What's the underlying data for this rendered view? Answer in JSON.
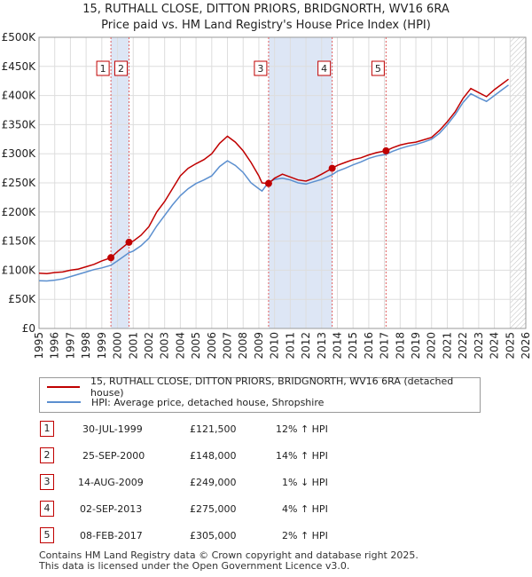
{
  "header": {
    "title_line1": "15, RUTHALL CLOSE, DITTON PRIORS, BRIDGNORTH, WV16 6RA",
    "title_line2": "Price paid vs. HM Land Registry's House Price Index (HPI)"
  },
  "colors": {
    "price_line": "#c00000",
    "hpi_line": "#5b8fcf",
    "shade": "#dde6f5",
    "marker_line": "#e06060"
  },
  "legend": {
    "price_label": "15, RUTHALL CLOSE, DITTON PRIORS, BRIDGNORTH, WV16 6RA (detached house)",
    "hpi_label": "HPI: Average price, detached house, Shropshire"
  },
  "transactions": [
    {
      "num": "1",
      "date": "30-JUL-1999",
      "price": "£121,500",
      "hpi": "12% ↑ HPI"
    },
    {
      "num": "2",
      "date": "25-SEP-2000",
      "price": "£148,000",
      "hpi": "14% ↑ HPI"
    },
    {
      "num": "3",
      "date": "14-AUG-2009",
      "price": "£249,000",
      "hpi": "1% ↓ HPI"
    },
    {
      "num": "4",
      "date": "02-SEP-2013",
      "price": "£275,000",
      "hpi": "4% ↑ HPI"
    },
    {
      "num": "5",
      "date": "08-FEB-2017",
      "price": "£305,000",
      "hpi": "2% ↑ HPI"
    }
  ],
  "footer": {
    "line1": "Contains HM Land Registry data © Crown copyright and database right 2025.",
    "line2": "This data is licensed under the Open Government Licence v3.0."
  },
  "chart_data": {
    "type": "line",
    "xlim": [
      1995,
      2026
    ],
    "ylim": [
      0,
      500000
    ],
    "x_ticks": [
      "1995",
      "1996",
      "1997",
      "1998",
      "1999",
      "2000",
      "2001",
      "2002",
      "2003",
      "2004",
      "2005",
      "2006",
      "2007",
      "2008",
      "2009",
      "2010",
      "2011",
      "2012",
      "2013",
      "2014",
      "2015",
      "2016",
      "2017",
      "2018",
      "2019",
      "2020",
      "2021",
      "2022",
      "2023",
      "2024",
      "2025",
      "2026"
    ],
    "y_ticks": [
      {
        "value": 0,
        "label": "£0"
      },
      {
        "value": 50000,
        "label": "£50K"
      },
      {
        "value": 100000,
        "label": "£100K"
      },
      {
        "value": 150000,
        "label": "£150K"
      },
      {
        "value": 200000,
        "label": "£200K"
      },
      {
        "value": 250000,
        "label": "£250K"
      },
      {
        "value": 300000,
        "label": "£300K"
      },
      {
        "value": 350000,
        "label": "£350K"
      },
      {
        "value": 400000,
        "label": "£400K"
      },
      {
        "value": 450000,
        "label": "£450K"
      },
      {
        "value": 500000,
        "label": "£500K"
      }
    ],
    "grid": true,
    "future_shade_from": 2025.0,
    "series": [
      {
        "name": "15, RUTHALL CLOSE, DITTON PRIORS, BRIDGNORTH, WV16 6RA (detached house)",
        "x": [
          1995.0,
          1995.5,
          1996.0,
          1996.5,
          1997.0,
          1997.5,
          1998.0,
          1998.5,
          1999.0,
          1999.58,
          2000.0,
          2000.73,
          2001.0,
          2001.5,
          2002.0,
          2002.5,
          2003.0,
          2003.5,
          2004.0,
          2004.5,
          2005.0,
          2005.5,
          2006.0,
          2006.5,
          2007.0,
          2007.5,
          2008.0,
          2008.5,
          2009.0,
          2009.2,
          2009.62,
          2010.0,
          2010.5,
          2011.0,
          2011.5,
          2012.0,
          2012.5,
          2013.0,
          2013.67,
          2014.0,
          2014.5,
          2015.0,
          2015.5,
          2016.0,
          2016.5,
          2017.1,
          2017.5,
          2018.0,
          2018.5,
          2019.0,
          2019.5,
          2020.0,
          2020.5,
          2021.0,
          2021.5,
          2022.0,
          2022.5,
          2023.0,
          2023.5,
          2024.0,
          2024.5,
          2024.9
        ],
        "y": [
          95000,
          94000,
          96000,
          97000,
          100000,
          102000,
          106000,
          110000,
          116000,
          121500,
          132000,
          148000,
          150000,
          160000,
          175000,
          200000,
          218000,
          240000,
          262000,
          275000,
          283000,
          290000,
          300000,
          318000,
          330000,
          320000,
          305000,
          285000,
          262000,
          250000,
          249000,
          258000,
          265000,
          260000,
          255000,
          253000,
          258000,
          265000,
          275000,
          280000,
          285000,
          290000,
          293000,
          298000,
          302000,
          305000,
          310000,
          315000,
          318000,
          320000,
          324000,
          328000,
          340000,
          355000,
          372000,
          395000,
          412000,
          405000,
          398000,
          410000,
          420000,
          428000
        ]
      },
      {
        "name": "HPI: Average price, detached house, Shropshire",
        "x": [
          1995.0,
          1995.5,
          1996.0,
          1996.5,
          1997.0,
          1997.5,
          1998.0,
          1998.5,
          1999.0,
          1999.58,
          2000.0,
          2000.73,
          2001.0,
          2001.5,
          2002.0,
          2002.5,
          2003.0,
          2003.5,
          2004.0,
          2004.5,
          2005.0,
          2005.5,
          2006.0,
          2006.5,
          2007.0,
          2007.5,
          2008.0,
          2008.5,
          2009.0,
          2009.2,
          2009.62,
          2010.0,
          2010.5,
          2011.0,
          2011.5,
          2012.0,
          2012.5,
          2013.0,
          2013.67,
          2014.0,
          2014.5,
          2015.0,
          2015.5,
          2016.0,
          2016.5,
          2017.1,
          2017.5,
          2018.0,
          2018.5,
          2019.0,
          2019.5,
          2020.0,
          2020.5,
          2021.0,
          2021.5,
          2022.0,
          2022.5,
          2023.0,
          2023.5,
          2024.0,
          2024.5,
          2024.9
        ],
        "y": [
          82000,
          81500,
          83000,
          85000,
          89000,
          93000,
          97000,
          101000,
          104000,
          108500,
          116000,
          130000,
          133000,
          142000,
          155000,
          176000,
          194000,
          212000,
          228000,
          240000,
          249000,
          255000,
          262000,
          278000,
          288000,
          280000,
          268000,
          250000,
          240000,
          236000,
          251000,
          256000,
          258000,
          255000,
          250000,
          248000,
          252000,
          256000,
          264000,
          270000,
          275000,
          281000,
          286000,
          292000,
          296000,
          299000,
          304000,
          309000,
          313000,
          316000,
          320000,
          325000,
          335000,
          350000,
          367000,
          388000,
          403000,
          396000,
          390000,
          400000,
          410000,
          418000
        ]
      }
    ],
    "markers": [
      {
        "label": "1",
        "x": 1999.58,
        "y": 121500
      },
      {
        "label": "2",
        "x": 2000.73,
        "y": 148000
      },
      {
        "label": "3",
        "x": 2009.62,
        "y": 249000
      },
      {
        "label": "4",
        "x": 2013.67,
        "y": 275000
      },
      {
        "label": "5",
        "x": 2017.1,
        "y": 305000
      }
    ]
  }
}
